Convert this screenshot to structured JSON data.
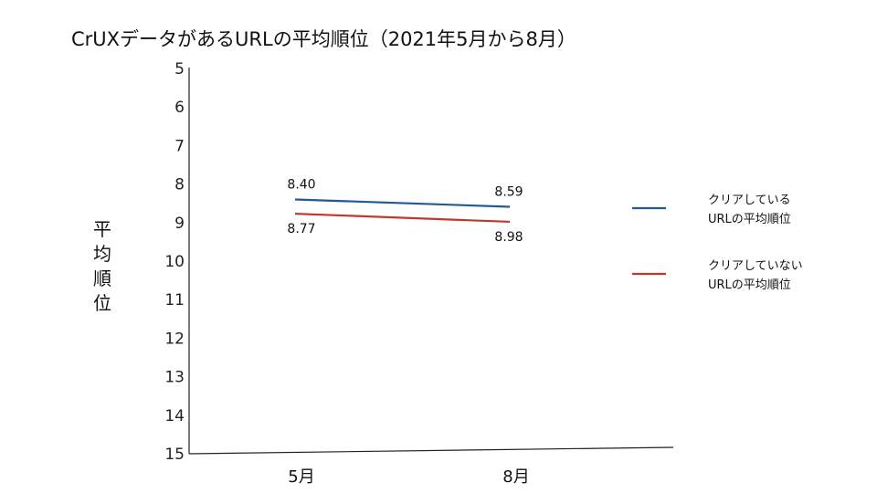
{
  "chart_data": {
    "type": "line",
    "title": "CrUXデータがあるURLの平均順位（2021年5月から8月）",
    "ylabel": "平均順位",
    "xlabel": "",
    "categories": [
      "5月",
      "8月"
    ],
    "ylim": [
      5,
      15
    ],
    "y_inverted": true,
    "y_ticks": [
      "5",
      "6",
      "7",
      "8",
      "9",
      "10",
      "11",
      "12",
      "13",
      "14",
      "15"
    ],
    "grid": false,
    "legend_position": "right",
    "series": [
      {
        "name_lines": [
          "クリアしている",
          "URLの平均順位"
        ],
        "values": [
          8.4,
          8.59
        ],
        "labels": [
          "8.40",
          "8.59"
        ],
        "color": "#1f5a96"
      },
      {
        "name_lines": [
          "クリアしていない",
          "URLの平均順位"
        ],
        "values": [
          8.77,
          8.98
        ],
        "labels": [
          "8.77",
          "8.98"
        ],
        "color": "#c0392b"
      }
    ]
  }
}
